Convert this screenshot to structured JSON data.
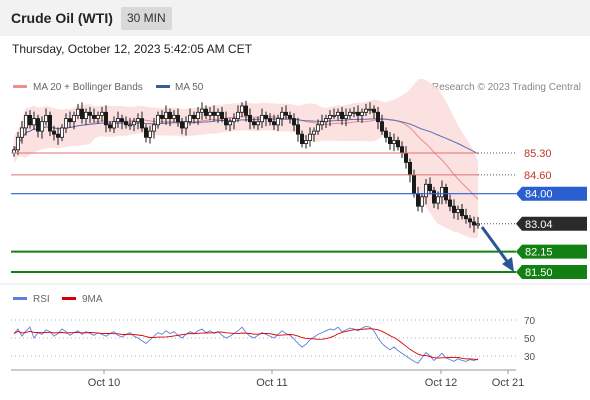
{
  "header": {
    "title": "Crude Oil (WTI)",
    "timeframe": "30 MIN"
  },
  "datetime": "Thursday, October 12, 2023 5:42:05 AM CET",
  "legend": {
    "ma20": "MA 20 + Bollinger Bands",
    "ma50": "MA 50",
    "copyright": "Research © 2023 Trading Central",
    "rsi": "RSI",
    "rsi_ma": "9MA"
  },
  "colors": {
    "candle": "#1a1a1a",
    "band_fill": "#fbdcdc",
    "ma20": "#e88a8a",
    "ma50": "#5b6fb8",
    "resistance": "#e07070",
    "pivot": "#2a5fcf",
    "support": "#128012",
    "price_tag": "#2b2b2b",
    "arrow": "#2a5596",
    "rsi": "#5b7fdb",
    "rsi_ma": "#d90000"
  },
  "chart_data": [
    {
      "type": "candlestick",
      "title": "Crude Oil (WTI)",
      "interval": "30 MIN",
      "x_ticks": [
        "Oct 10",
        "Oct 11",
        "Oct 12",
        "Oct 21"
      ],
      "ylim": [
        81.2,
        87.5
      ],
      "indicators": [
        "MA 20 + Bollinger Bands",
        "MA 50"
      ],
      "closes": [
        85.4,
        85.8,
        86.1,
        86.5,
        86.2,
        86.4,
        86.0,
        86.3,
        86.5,
        86.0,
        85.9,
        85.8,
        86.1,
        86.4,
        86.3,
        86.5,
        86.7,
        86.4,
        86.6,
        86.5,
        86.4,
        86.5,
        86.6,
        86.2,
        86.1,
        86.3,
        86.4,
        86.3,
        86.2,
        86.2,
        86.3,
        86.4,
        86.1,
        85.8,
        86.0,
        86.2,
        86.5,
        86.4,
        86.6,
        86.4,
        86.5,
        86.3,
        86.1,
        86.3,
        86.5,
        86.4,
        86.6,
        86.7,
        86.5,
        86.6,
        86.5,
        86.6,
        86.4,
        86.2,
        86.3,
        86.4,
        86.6,
        86.8,
        86.5,
        86.3,
        86.2,
        86.3,
        86.5,
        86.4,
        86.3,
        86.2,
        86.4,
        86.6,
        86.5,
        86.4,
        86.2,
        85.9,
        85.6,
        85.7,
        85.9,
        86.0,
        86.2,
        86.3,
        86.4,
        86.5,
        86.5,
        86.6,
        86.4,
        86.5,
        86.6,
        86.6,
        86.5,
        86.6,
        86.7,
        86.7,
        86.6,
        86.3,
        86.0,
        85.8,
        85.6,
        85.7,
        85.5,
        85.3,
        85.0,
        84.6,
        84.0,
        83.6,
        83.9,
        84.3,
        84.1,
        83.7,
        83.9,
        84.2,
        83.8,
        83.6,
        83.4,
        83.5,
        83.3,
        83.2,
        83.1,
        83.0,
        83.04
      ],
      "rsi": {
        "ylim": [
          0,
          100
        ],
        "levels": [
          70,
          50,
          30
        ],
        "rsi_values": [
          55,
          60,
          52,
          58,
          62,
          50,
          56,
          54,
          59,
          57,
          52,
          55,
          60,
          57,
          53,
          56,
          58,
          54,
          57,
          55,
          53,
          56,
          54,
          52,
          55,
          57,
          53,
          51,
          54,
          56,
          52,
          50,
          47,
          44,
          48,
          52,
          56,
          54,
          58,
          55,
          57,
          53,
          50,
          54,
          57,
          55,
          58,
          60,
          56,
          58,
          55,
          57,
          53,
          50,
          52,
          55,
          58,
          62,
          56,
          52,
          50,
          53,
          56,
          54,
          52,
          50,
          54,
          58,
          55,
          53,
          49,
          44,
          40,
          43,
          48,
          51,
          54,
          56,
          58,
          60,
          59,
          62,
          57,
          59,
          61,
          60,
          58,
          61,
          63,
          62,
          58,
          50,
          44,
          40,
          37,
          40,
          36,
          33,
          30,
          27,
          24,
          22,
          28,
          34,
          30,
          25,
          29,
          33,
          28,
          26,
          24,
          27,
          25,
          24,
          26,
          25,
          27
        ]
      }
    }
  ],
  "levels": [
    {
      "label": "85.30",
      "value": 85.3,
      "kind": "resistance"
    },
    {
      "label": "84.60",
      "value": 84.6,
      "kind": "resistance"
    },
    {
      "label": "84.00",
      "value": 84.0,
      "kind": "pivot"
    },
    {
      "label": "83.04",
      "value": 83.04,
      "kind": "last"
    },
    {
      "label": "82.15",
      "value": 82.15,
      "kind": "support"
    },
    {
      "label": "81.50",
      "value": 81.5,
      "kind": "support"
    }
  ],
  "rsi_labels": [
    "70",
    "50",
    "30"
  ]
}
